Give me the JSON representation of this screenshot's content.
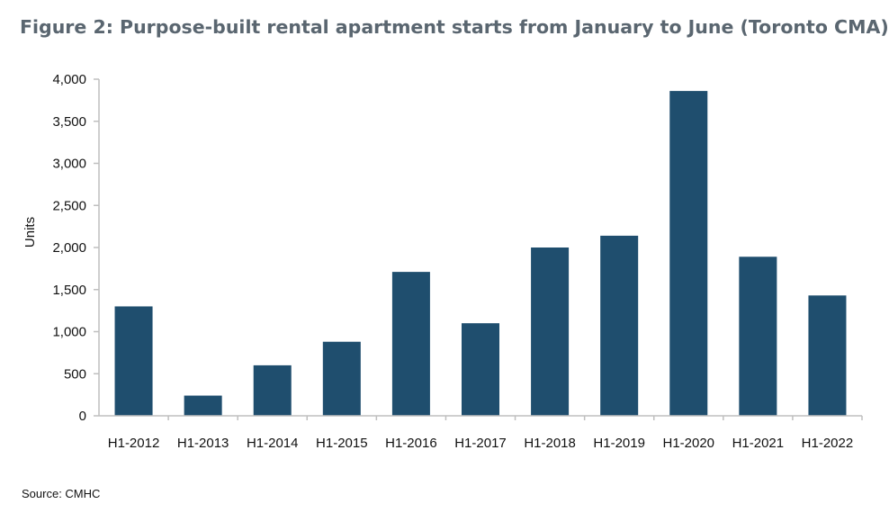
{
  "title": "Figure 2: Purpose-built rental apartment starts from January to June (Toronto CMA)",
  "source": "Source: CMHC",
  "colors": {
    "bar": "#1f4e6e",
    "axis": "#bfbfbf"
  },
  "chart_data": {
    "type": "bar",
    "title": "Figure 2: Purpose-built rental apartment starts from January to June (Toronto CMA)",
    "xlabel": "",
    "ylabel": "Units",
    "ylim": [
      0,
      4000
    ],
    "yticks": [
      0,
      500,
      1000,
      1500,
      2000,
      2500,
      3000,
      3500,
      4000
    ],
    "ytick_labels": [
      "0",
      "500",
      "1,000",
      "1,500",
      "2,000",
      "2,500",
      "3,000",
      "3,500",
      "4,000"
    ],
    "grid": false,
    "categories": [
      "H1-2012",
      "H1-2013",
      "H1-2014",
      "H1-2015",
      "H1-2016",
      "H1-2017",
      "H1-2018",
      "H1-2019",
      "H1-2020",
      "H1-2021",
      "H1-2022"
    ],
    "values": [
      1300,
      240,
      600,
      880,
      1710,
      1100,
      2000,
      2140,
      3860,
      1890,
      1430
    ]
  }
}
